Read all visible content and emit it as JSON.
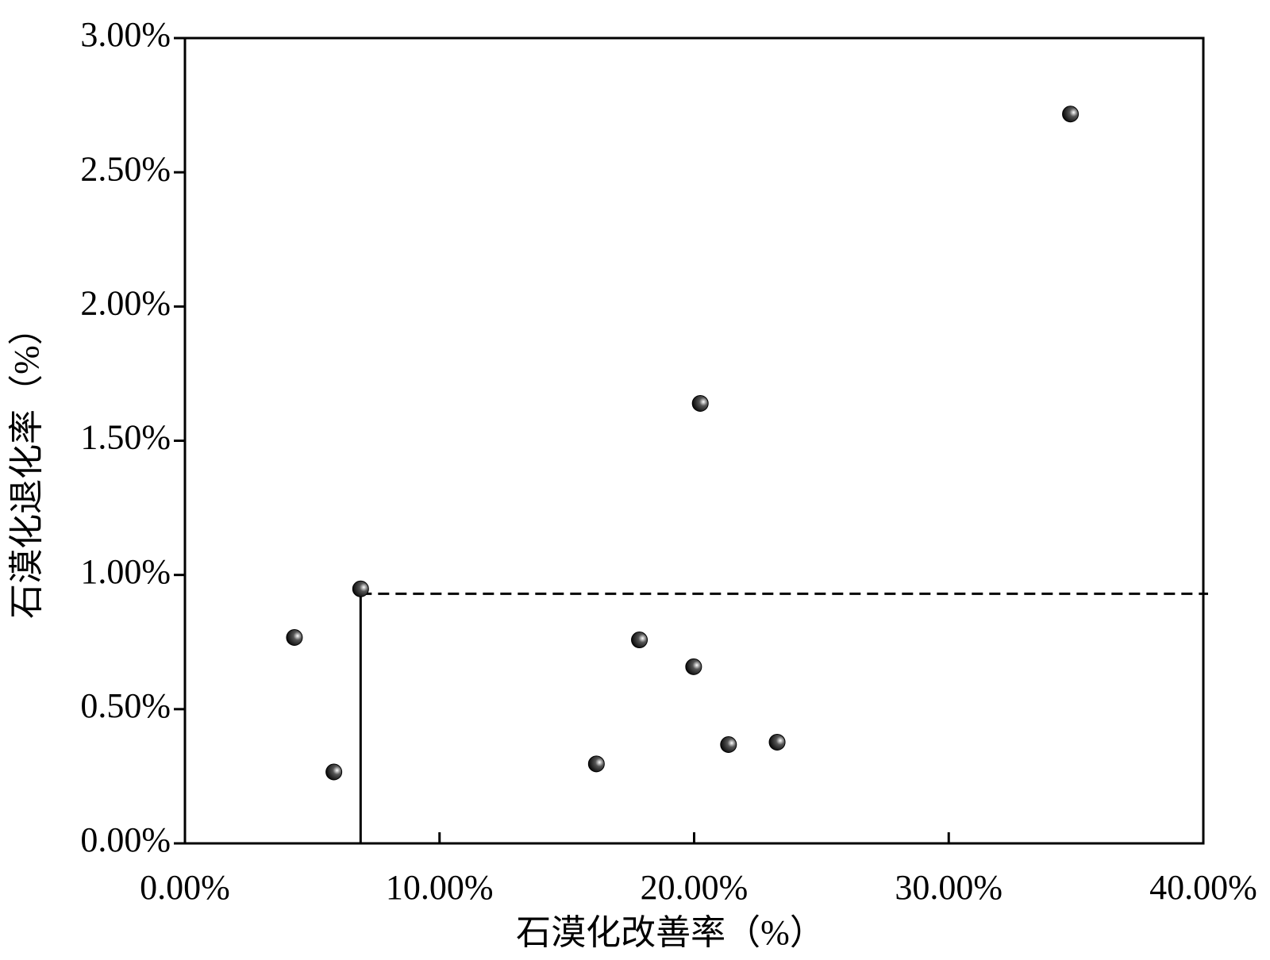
{
  "chart_data": {
    "type": "scatter",
    "xlabel": "石漠化改善率（%）",
    "ylabel": "石漠化退化率（%）",
    "x": [
      4.3,
      5.85,
      6.9,
      16.16,
      17.85,
      19.98,
      20.24,
      21.35,
      23.26,
      34.78
    ],
    "values": [
      0.767,
      0.266,
      0.948,
      0.296,
      0.758,
      0.658,
      1.639,
      0.368,
      0.377,
      2.717
    ],
    "color": "#000000",
    "xlim": [
      0,
      40
    ],
    "ylim": [
      0,
      3
    ],
    "xticks": [
      {
        "value": 0,
        "label": "0.00%"
      },
      {
        "value": 10,
        "label": "10.00%"
      },
      {
        "value": 20,
        "label": "20.00%"
      },
      {
        "value": 30,
        "label": "30.00%"
      },
      {
        "value": 40,
        "label": "40.00%"
      }
    ],
    "yticks": [
      {
        "value": 0,
        "label": "0.00%"
      },
      {
        "value": 0.5,
        "label": "0.50%"
      },
      {
        "value": 1,
        "label": "1.00%"
      },
      {
        "value": 1.5,
        "label": "1.50%"
      },
      {
        "value": 2,
        "label": "2.00%"
      },
      {
        "value": 2.5,
        "label": "2.50%"
      },
      {
        "value": 3,
        "label": "3.00%"
      }
    ],
    "x_threshold": 6.9,
    "y_threshold": 0.93
  }
}
